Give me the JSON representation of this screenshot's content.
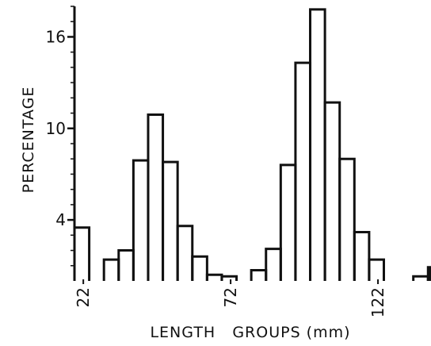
{
  "chart_data": {
    "type": "bar",
    "title": "",
    "xlabel": "LENGTH   GROUPS (mm)",
    "ylabel": "PERCENTAGE",
    "xlim": [
      19,
      140
    ],
    "ylim": [
      0,
      18
    ],
    "x_ticks": [
      {
        "value": 22,
        "label": "22"
      },
      {
        "value": 72,
        "label": "72"
      },
      {
        "value": 122,
        "label": "122"
      }
    ],
    "y_ticks": [
      {
        "value": 4,
        "label": "4"
      },
      {
        "value": 10,
        "label": "10"
      },
      {
        "value": 16,
        "label": "16"
      }
    ],
    "bin_width": 5,
    "bins": [
      {
        "start": 19,
        "end": 24,
        "value": 3.5
      },
      {
        "start": 29,
        "end": 34,
        "value": 1.4
      },
      {
        "start": 34,
        "end": 39,
        "value": 2.0
      },
      {
        "start": 39,
        "end": 44,
        "value": 7.9
      },
      {
        "start": 44,
        "end": 49,
        "value": 10.9
      },
      {
        "start": 49,
        "end": 54,
        "value": 7.8
      },
      {
        "start": 54,
        "end": 59,
        "value": 3.6
      },
      {
        "start": 59,
        "end": 64,
        "value": 1.6
      },
      {
        "start": 64,
        "end": 69,
        "value": 0.4
      },
      {
        "start": 69,
        "end": 74,
        "value": 0.3
      },
      {
        "start": 79,
        "end": 84,
        "value": 0.7
      },
      {
        "start": 84,
        "end": 89,
        "value": 2.1
      },
      {
        "start": 89,
        "end": 94,
        "value": 7.6
      },
      {
        "start": 94,
        "end": 99,
        "value": 14.3
      },
      {
        "start": 99,
        "end": 104,
        "value": 17.8
      },
      {
        "start": 104,
        "end": 109,
        "value": 11.7
      },
      {
        "start": 109,
        "end": 114,
        "value": 8.0
      },
      {
        "start": 114,
        "end": 119,
        "value": 3.2
      },
      {
        "start": 119,
        "end": 124,
        "value": 1.4
      },
      {
        "start": 134,
        "end": 139,
        "value": 0.3
      },
      {
        "start": 139,
        "end": 144,
        "value": 0.9
      }
    ]
  }
}
